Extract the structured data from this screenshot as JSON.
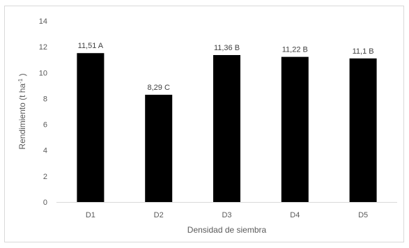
{
  "chart_data": {
    "type": "bar",
    "categories": [
      "D1",
      "D2",
      "D3",
      "D4",
      "D5"
    ],
    "values": [
      11.51,
      8.29,
      11.36,
      11.22,
      11.1
    ],
    "data_labels": [
      "11,51 A",
      "8,29 C",
      "11,36 B",
      "11,22 B",
      "11,1 B"
    ],
    "yticks": [
      "0",
      "2",
      "4",
      "6",
      "8",
      "10",
      "12",
      "14"
    ],
    "xlabel": "Densidad de siembra",
    "ylabel": {
      "main": "Rendimiento (t ha",
      "superscript": "-1",
      "close": " )"
    },
    "ylim": [
      0,
      14
    ],
    "grid": false,
    "legend": "none",
    "bar_color": "#000000",
    "axis_color": "#d9d9d9"
  }
}
